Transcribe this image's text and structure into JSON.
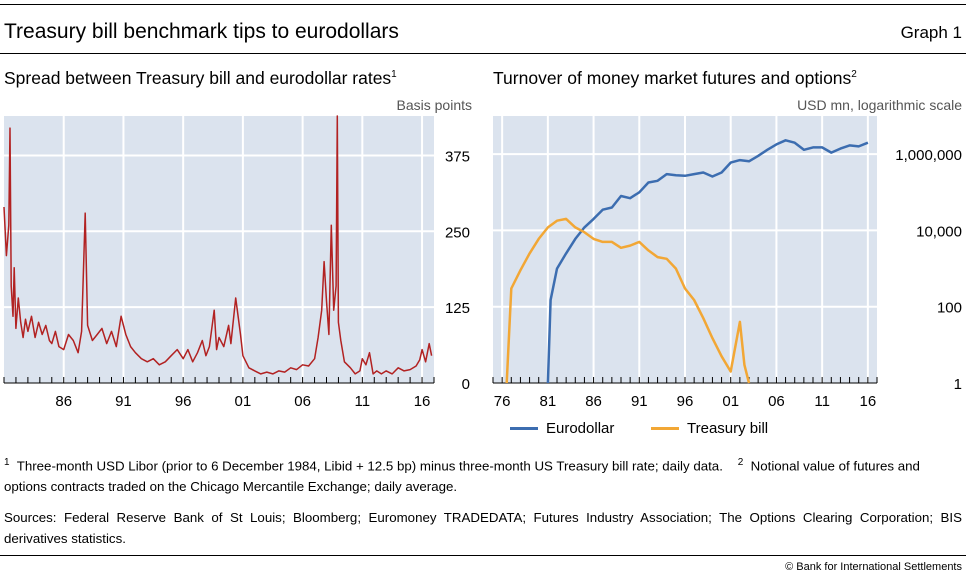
{
  "header": {
    "title": "Treasury bill benchmark tips to eurodollars",
    "graph_label": "Graph 1"
  },
  "chart_data": [
    {
      "type": "line",
      "title": "Spread between Treasury bill and eurodollar rates",
      "title_note": "1",
      "ylabel": "Basis points",
      "ylim": [
        0,
        440
      ],
      "xlim": [
        1981.0,
        2017.0
      ],
      "y_ticks": [
        0,
        125,
        250,
        375
      ],
      "y_tick_labels": [
        "0",
        "125",
        "250",
        "375"
      ],
      "x_tick_values": [
        1986,
        1991,
        1996,
        2001,
        2006,
        2011,
        2016
      ],
      "x_tick_labels": [
        "86",
        "91",
        "96",
        "01",
        "06",
        "11",
        "16"
      ],
      "grid": true,
      "series_color": "#b22222",
      "series": [
        {
          "x": [
            1981.0,
            1981.2,
            1981.4,
            1981.5,
            1981.6,
            1981.75,
            1981.85,
            1982.0,
            1982.2,
            1982.4,
            1982.6,
            1982.8,
            1983.0,
            1983.3,
            1983.6,
            1983.9,
            1984.2,
            1984.5,
            1984.8,
            1985.0,
            1985.3,
            1985.6,
            1986.0,
            1986.4,
            1986.8,
            1987.2,
            1987.5,
            1987.8,
            1988.0,
            1988.4,
            1988.8,
            1989.2,
            1989.6,
            1990.0,
            1990.4,
            1990.8,
            1991.2,
            1991.6,
            1992.0,
            1992.5,
            1993.0,
            1993.5,
            1994.0,
            1994.5,
            1995.0,
            1995.5,
            1996.0,
            1996.4,
            1996.8,
            1997.2,
            1997.6,
            1997.9,
            1998.2,
            1998.6,
            1998.8,
            1999.0,
            1999.4,
            1999.8,
            2000.0,
            2000.4,
            2000.8,
            2001.0,
            2001.5,
            2002.0,
            2002.5,
            2003.0,
            2003.5,
            2004.0,
            2004.5,
            2005.0,
            2005.5,
            2006.0,
            2006.5,
            2007.0,
            2007.3,
            2007.6,
            2007.8,
            2008.0,
            2008.2,
            2008.4,
            2008.6,
            2008.8,
            2008.9,
            2009.0,
            2009.2,
            2009.5,
            2010.0,
            2010.4,
            2010.8,
            2011.0,
            2011.3,
            2011.6,
            2011.9,
            2012.2,
            2012.6,
            2013.0,
            2013.5,
            2014.0,
            2014.5,
            2015.0,
            2015.5,
            2015.8,
            2016.0,
            2016.3,
            2016.6,
            2016.8
          ],
          "values": [
            290,
            210,
            260,
            420,
            160,
            110,
            190,
            90,
            140,
            100,
            75,
            105,
            85,
            110,
            75,
            100,
            80,
            95,
            70,
            65,
            85,
            60,
            55,
            80,
            70,
            50,
            85,
            280,
            95,
            70,
            80,
            90,
            65,
            85,
            60,
            110,
            80,
            60,
            50,
            40,
            35,
            40,
            30,
            35,
            45,
            55,
            40,
            55,
            35,
            50,
            70,
            45,
            60,
            120,
            55,
            75,
            60,
            95,
            65,
            140,
            80,
            45,
            25,
            20,
            15,
            18,
            15,
            20,
            18,
            25,
            22,
            30,
            28,
            40,
            75,
            120,
            200,
            135,
            80,
            260,
            120,
            160,
            460,
            100,
            70,
            35,
            25,
            15,
            20,
            40,
            30,
            50,
            15,
            20,
            15,
            20,
            15,
            25,
            20,
            22,
            28,
            38,
            55,
            35,
            65,
            45
          ]
        }
      ]
    },
    {
      "type": "line",
      "title": "Turnover of money market futures and options",
      "title_note": "2",
      "ylabel": "USD mn, logarithmic scale",
      "yscale": "log",
      "ylim": [
        1,
        10000000
      ],
      "xlim": [
        1975.0,
        2017.0
      ],
      "y_ticks": [
        1,
        100,
        10000,
        1000000
      ],
      "y_tick_labels": [
        "1",
        "100",
        "10,000",
        "1,000,000"
      ],
      "x_tick_values": [
        1976,
        1981,
        1986,
        1991,
        1996,
        2001,
        2006,
        2011,
        2016
      ],
      "x_tick_labels": [
        "76",
        "81",
        "86",
        "91",
        "96",
        "01",
        "06",
        "11",
        "16"
      ],
      "grid": true,
      "legend": "bottom",
      "series": [
        {
          "name": "Eurodollar",
          "color": "#3c6db0",
          "x": [
            1981.0,
            1981.3,
            1982,
            1983,
            1984,
            1985,
            1986,
            1987,
            1988,
            1989,
            1990,
            1991,
            1992,
            1993,
            1994,
            1995,
            1996,
            1997,
            1998,
            1999,
            2000,
            2001,
            2002,
            2003,
            2004,
            2005,
            2006,
            2007,
            2008,
            2009,
            2010,
            2011,
            2012,
            2013,
            2014,
            2015,
            2016
          ],
          "values": [
            1,
            150,
            1000,
            2500,
            6000,
            12000,
            20000,
            35000,
            40000,
            80000,
            70000,
            100000,
            180000,
            200000,
            300000,
            280000,
            270000,
            300000,
            330000,
            260000,
            330000,
            600000,
            700000,
            650000,
            900000,
            1300000,
            1800000,
            2300000,
            2000000,
            1300000,
            1500000,
            1500000,
            1100000,
            1400000,
            1700000,
            1600000,
            2000000
          ]
        },
        {
          "name": "Treasury bill",
          "color": "#f2a735",
          "x": [
            1976.5,
            1977,
            1978,
            1979,
            1980,
            1981,
            1982,
            1983,
            1984,
            1985,
            1986,
            1987,
            1988,
            1989,
            1990,
            1991,
            1992,
            1993,
            1994,
            1995,
            1996,
            1997,
            1998,
            1999,
            2000,
            2001,
            2002,
            2002.5,
            2003
          ],
          "values": [
            1,
            300,
            900,
            2500,
            6000,
            12000,
            18000,
            20000,
            12000,
            9000,
            6000,
            5000,
            5000,
            3500,
            4000,
            5000,
            3000,
            2000,
            1800,
            1000,
            300,
            150,
            50,
            15,
            5,
            2,
            40,
            3,
            1
          ]
        }
      ]
    }
  ],
  "footnotes": {
    "note1_mark": "1",
    "note1_text": "Three-month USD Libor (prior to 6 December 1984, Libid + 12.5 bp) minus three-month US Treasury bill rate; daily data.",
    "note2_mark": "2",
    "note2_text": "Notional value of futures and options contracts traded on the Chicago Mercantile Exchange; daily average."
  },
  "sources": "Sources: Federal Reserve Bank of St Louis; Bloomberg; Euromoney TRADEDATA; Futures Industry Association; The Options Clearing Corporation; BIS derivatives statistics.",
  "copyright": "© Bank for International Settlements"
}
